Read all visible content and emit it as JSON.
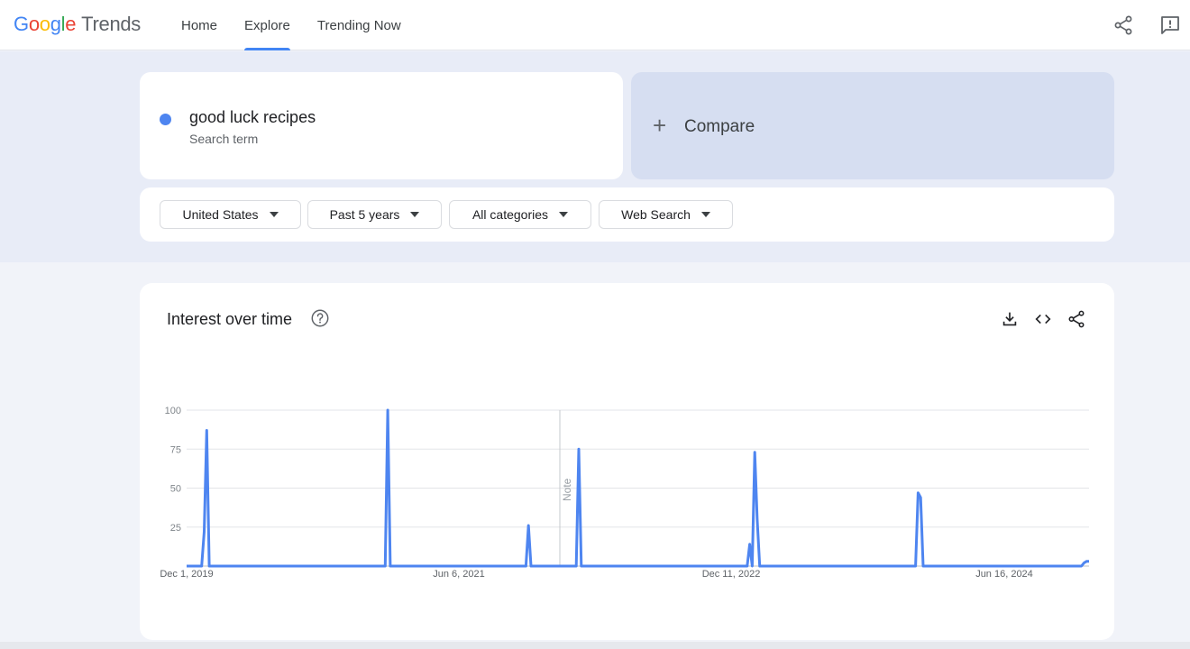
{
  "header": {
    "logo": {
      "g1": "G",
      "o1": "o",
      "o2": "o",
      "g2": "g",
      "l": "l",
      "e": "e",
      "trends": "Trends"
    },
    "tabs": [
      {
        "label": "Home",
        "active": false
      },
      {
        "label": "Explore",
        "active": true
      },
      {
        "label": "Trending Now",
        "active": false
      }
    ],
    "icons": [
      "share-icon",
      "feedback-icon"
    ]
  },
  "search": {
    "term": "good luck recipes",
    "term_type": "Search term",
    "term_color": "#4e85f0",
    "compare_label": "Compare"
  },
  "filters": [
    {
      "label": "United States"
    },
    {
      "label": "Past 5 years"
    },
    {
      "label": "All categories"
    },
    {
      "label": "Web Search"
    }
  ],
  "chart": {
    "title": "Interest over time",
    "tools": [
      "download-icon",
      "embed-icon",
      "share-icon"
    ],
    "note_label": "Note"
  },
  "chart_data": {
    "type": "line",
    "yticks": [
      100,
      75,
      50,
      25
    ],
    "ylim": [
      0,
      100
    ],
    "xlabels": [
      "Dec 1, 2019",
      "Jun 6, 2021",
      "Dec 11, 2022",
      "Jun 16, 2024"
    ],
    "series": [
      {
        "color": "#4e85f0",
        "points": [
          [
            0,
            0
          ],
          [
            4,
            0
          ],
          [
            6,
            0
          ],
          [
            7,
            22
          ],
          [
            8,
            87
          ],
          [
            9,
            0
          ],
          [
            10,
            0
          ],
          [
            78,
            0
          ],
          [
            79,
            0
          ],
          [
            80,
            100
          ],
          [
            81,
            0
          ],
          [
            82,
            0
          ],
          [
            134,
            0
          ],
          [
            135,
            0
          ],
          [
            136,
            26
          ],
          [
            137,
            0
          ],
          [
            138,
            0
          ],
          [
            154,
            0
          ],
          [
            155,
            0
          ],
          [
            156,
            75
          ],
          [
            157,
            0
          ],
          [
            158,
            0
          ],
          [
            222,
            0
          ],
          [
            223,
            0
          ],
          [
            224,
            14
          ],
          [
            225,
            0
          ],
          [
            226,
            73
          ],
          [
            227,
            30
          ],
          [
            228,
            0
          ],
          [
            286,
            0
          ],
          [
            290,
            0
          ],
          [
            291,
            47
          ],
          [
            292,
            44
          ],
          [
            293,
            0
          ],
          [
            294,
            0
          ],
          [
            354,
            0
          ],
          [
            356,
            0
          ],
          [
            357,
            2
          ],
          [
            358,
            3
          ],
          [
            359,
            3
          ]
        ]
      }
    ]
  }
}
